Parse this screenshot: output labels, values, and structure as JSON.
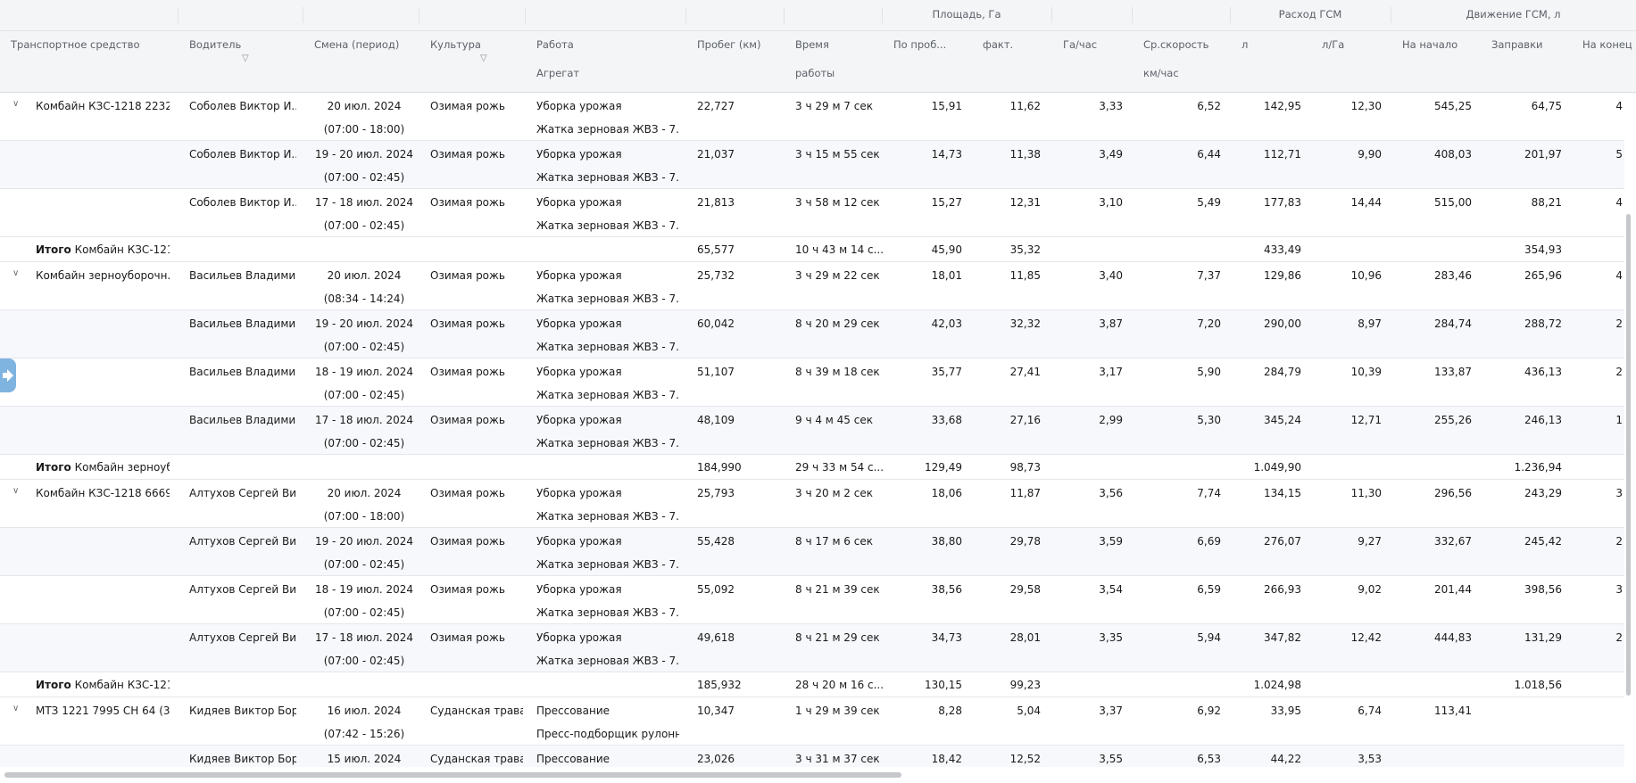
{
  "header": {
    "groups": {
      "area": "Площадь, Га",
      "fuel": "Расход ГСМ",
      "move": "Движение ГСМ, л"
    },
    "columns": {
      "vehicle": "Транспортное средство",
      "driver": "Водитель",
      "shift": "Смена (период)",
      "crop": "Культура",
      "work": "Работа",
      "aggregate": "Агрегат",
      "mileage": "Пробег (км)",
      "time1": "Время",
      "time2": "работы",
      "area_mileage": "По проб...",
      "area_fact": "факт.",
      "ha_hour": "Га/час",
      "speed1": "Ср.скорость",
      "speed2": "км/час",
      "fuel_l": "л",
      "fuel_lha": "л/Га",
      "start": "На начало",
      "refuel": "Заправки",
      "end": "На конец"
    }
  },
  "rows": [
    {
      "type": "data",
      "alt": false,
      "chevron": true,
      "vehicle": "Комбайн КЗС-1218 2232 ...",
      "driver": "Соболев Виктор И...",
      "date": "20 июл. 2024",
      "time": "(07:00 - 18:00)",
      "crop": "Озимая рожь",
      "work": "Уборка урожая",
      "agg": "Жатка зерновая ЖВЗ - 7.0 ...",
      "mileage": "22,727",
      "dur": "3 ч 29 м 7 сек",
      "area_m": "15,91",
      "area_f": "11,62",
      "hah": "3,33",
      "speed": "6,52",
      "fuel": "142,95",
      "lha": "12,30",
      "start": "545,25",
      "refuel": "64,75",
      "end": "4"
    },
    {
      "type": "data",
      "alt": true,
      "chevron": false,
      "vehicle": "",
      "driver": "Соболев Виктор И...",
      "date": "19 - 20 июл. 2024",
      "time": "(07:00 - 02:45)",
      "crop": "Озимая рожь",
      "work": "Уборка урожая",
      "agg": "Жатка зерновая ЖВЗ - 7.0 ...",
      "mileage": "21,037",
      "dur": "3 ч 15 м 55 сек",
      "area_m": "14,73",
      "area_f": "11,38",
      "hah": "3,49",
      "speed": "6,44",
      "fuel": "112,71",
      "lha": "9,90",
      "start": "408,03",
      "refuel": "201,97",
      "end": "5"
    },
    {
      "type": "data",
      "alt": false,
      "chevron": false,
      "vehicle": "",
      "driver": "Соболев Виктор И...",
      "date": "17 - 18  июл. 2024",
      "time": "(07:00 - 02:45)",
      "crop": "Озимая рожь",
      "work": "Уборка урожая",
      "agg": "Жатка зерновая ЖВЗ - 7.0 ...",
      "mileage": "21,813",
      "dur": "3 ч 58 м 12 сек",
      "area_m": "15,27",
      "area_f": "12,31",
      "hah": "3,10",
      "speed": "5,49",
      "fuel": "177,83",
      "lha": "14,44",
      "start": "515,00",
      "refuel": "88,21",
      "end": "4"
    },
    {
      "type": "total",
      "label": "Итого",
      "name": "Комбайн КЗС-121...",
      "mileage": "65,577",
      "dur": "10 ч 43 м 14 с...",
      "area_m": "45,90",
      "area_f": "35,32",
      "fuel": "433,49",
      "refuel": "354,93"
    },
    {
      "type": "data",
      "alt": false,
      "chevron": true,
      "vehicle": "Комбайн зерноуборочн...",
      "driver": "Васильев Владими...",
      "date": "20 июл. 2024",
      "time": "(08:34 - 14:24)",
      "crop": "Озимая рожь",
      "work": "Уборка урожая",
      "agg": "Жатка зерновая ЖВЗ - 7.0 ...",
      "mileage": "25,732",
      "dur": "3 ч 29 м 22 сек",
      "area_m": "18,01",
      "area_f": "11,85",
      "hah": "3,40",
      "speed": "7,37",
      "fuel": "129,86",
      "lha": "10,96",
      "start": "283,46",
      "refuel": "265,96",
      "end": "4"
    },
    {
      "type": "data",
      "alt": true,
      "chevron": false,
      "vehicle": "",
      "driver": "Васильев Владими...",
      "date": "19 - 20 июл. 2024",
      "time": "(07:00 - 02:45)",
      "crop": "Озимая рожь",
      "work": "Уборка урожая",
      "agg": "Жатка зерновая ЖВЗ - 7.0 ...",
      "mileage": "60,042",
      "dur": "8 ч 20 м 29 сек",
      "area_m": "42,03",
      "area_f": "32,32",
      "hah": "3,87",
      "speed": "7,20",
      "fuel": "290,00",
      "lha": "8,97",
      "start": "284,74",
      "refuel": "288,72",
      "end": "2"
    },
    {
      "type": "data",
      "alt": false,
      "chevron": false,
      "vehicle": "",
      "driver": "Васильев Владими...",
      "date": "18 - 19  июл. 2024",
      "time": "(07:00 - 02:45)",
      "crop": "Озимая рожь",
      "work": "Уборка урожая",
      "agg": "Жатка зерновая ЖВЗ - 7.0 ...",
      "mileage": "51,107",
      "dur": "8 ч 39 м 18 сек",
      "area_m": "35,77",
      "area_f": "27,41",
      "hah": "3,17",
      "speed": "5,90",
      "fuel": "284,79",
      "lha": "10,39",
      "start": "133,87",
      "refuel": "436,13",
      "end": "2"
    },
    {
      "type": "data",
      "alt": true,
      "chevron": false,
      "vehicle": "",
      "driver": "Васильев Владими...",
      "date": "17 - 18  июл. 2024",
      "time": "(07:00 - 02:45)",
      "crop": "Озимая рожь",
      "work": "Уборка урожая",
      "agg": "Жатка зерновая ЖВЗ - 7.0 ...",
      "mileage": "48,109",
      "dur": "9 ч 4 м 45 сек",
      "area_m": "33,68",
      "area_f": "27,16",
      "hah": "2,99",
      "speed": "5,30",
      "fuel": "345,24",
      "lha": "12,71",
      "start": "255,26",
      "refuel": "246,13",
      "end": "1"
    },
    {
      "type": "total",
      "label": "Итого",
      "name": "Комбайн зерноуб...",
      "mileage": "184,990",
      "dur": "29 ч 33 м 54 с...",
      "area_m": "129,49",
      "area_f": "98,73",
      "fuel": "1.049,90",
      "refuel": "1.236,94"
    },
    {
      "type": "data",
      "alt": false,
      "chevron": true,
      "vehicle": "Комбайн КЗС-1218 6669 ...",
      "driver": "Алтухов Сергей Ви...",
      "date": "20 июл. 2024",
      "time": "(07:00 - 18:00)",
      "crop": "Озимая рожь",
      "work": "Уборка урожая",
      "agg": "Жатка зерновая ЖВЗ - 7.0 ...",
      "mileage": "25,793",
      "dur": "3 ч 20 м 2 сек",
      "area_m": "18,06",
      "area_f": "11,87",
      "hah": "3,56",
      "speed": "7,74",
      "fuel": "134,15",
      "lha": "11,30",
      "start": "296,56",
      "refuel": "243,29",
      "end": "3"
    },
    {
      "type": "data",
      "alt": true,
      "chevron": false,
      "vehicle": "",
      "driver": "Алтухов Сергей Ви...",
      "date": "19 - 20  июл. 2024",
      "time": "(07:00 - 02:45)",
      "crop": "Озимая рожь",
      "work": "Уборка урожая",
      "agg": "Жатка зерновая ЖВЗ - 7.0 ...",
      "mileage": "55,428",
      "dur": "8 ч 17 м 6 сек",
      "area_m": "38,80",
      "area_f": "29,78",
      "hah": "3,59",
      "speed": "6,69",
      "fuel": "276,07",
      "lha": "9,27",
      "start": "332,67",
      "refuel": "245,42",
      "end": "2"
    },
    {
      "type": "data",
      "alt": false,
      "chevron": false,
      "vehicle": "",
      "driver": "Алтухов Сергей Ви...",
      "date": "18 - 19  июл. 2024",
      "time": "(07:00 - 02:45)",
      "crop": "Озимая рожь",
      "work": "Уборка урожая",
      "agg": "Жатка зерновая ЖВЗ - 7.0 ...",
      "mileage": "55,092",
      "dur": "8 ч 21 м 39 сек",
      "area_m": "38,56",
      "area_f": "29,58",
      "hah": "3,54",
      "speed": "6,59",
      "fuel": "266,93",
      "lha": "9,02",
      "start": "201,44",
      "refuel": "398,56",
      "end": "3"
    },
    {
      "type": "data",
      "alt": true,
      "chevron": false,
      "vehicle": "",
      "driver": "Алтухов Сергей Ви...",
      "date": "17 - 18  июл. 2024",
      "time": "(07:00 - 02:45)",
      "crop": "Озимая рожь",
      "work": "Уборка урожая",
      "agg": "Жатка зерновая ЖВЗ - 7.0 ...",
      "mileage": "49,618",
      "dur": "8 ч 21 м 29 сек",
      "area_m": "34,73",
      "area_f": "28,01",
      "hah": "3,35",
      "speed": "5,94",
      "fuel": "347,82",
      "lha": "12,42",
      "start": "444,83",
      "refuel": "131,29",
      "end": "2"
    },
    {
      "type": "total",
      "label": "Итого",
      "name": "Комбайн КЗС-121...",
      "mileage": "185,932",
      "dur": "28 ч 20 м 16 с...",
      "area_m": "130,15",
      "area_f": "99,23",
      "fuel": "1.024,98",
      "refuel": "1.018,56"
    },
    {
      "type": "data",
      "alt": false,
      "chevron": true,
      "vehicle": "МТЗ 1221 7995 СН 64 (3)",
      "driver": "Кидяев Виктор Бор...",
      "date": "16 июл. 2024",
      "time": "(07:42 - 15:26)",
      "crop": "Суданская трава",
      "work": "Прессование",
      "agg": "Пресс-подборщик рулонн...",
      "mileage": "10,347",
      "dur": "1 ч 29 м 39 сек",
      "area_m": "8,28",
      "area_f": "5,04",
      "hah": "3,37",
      "speed": "6,92",
      "fuel": "33,95",
      "lha": "6,74",
      "start": "113,41",
      "refuel": "",
      "end": ""
    },
    {
      "type": "data",
      "alt": true,
      "chevron": false,
      "vehicle": "",
      "driver": "Кидяев Виктор Бор...",
      "date": "15 июл. 2024",
      "time": "",
      "crop": "Суданская трава",
      "work": "Прессование",
      "agg": "",
      "mileage": "23,026",
      "dur": "3 ч 31 м 37 сек",
      "area_m": "18,42",
      "area_f": "12,52",
      "hah": "3,55",
      "speed": "6,53",
      "fuel": "44,22",
      "lha": "3,53",
      "start": "",
      "refuel": "",
      "end": ""
    }
  ]
}
